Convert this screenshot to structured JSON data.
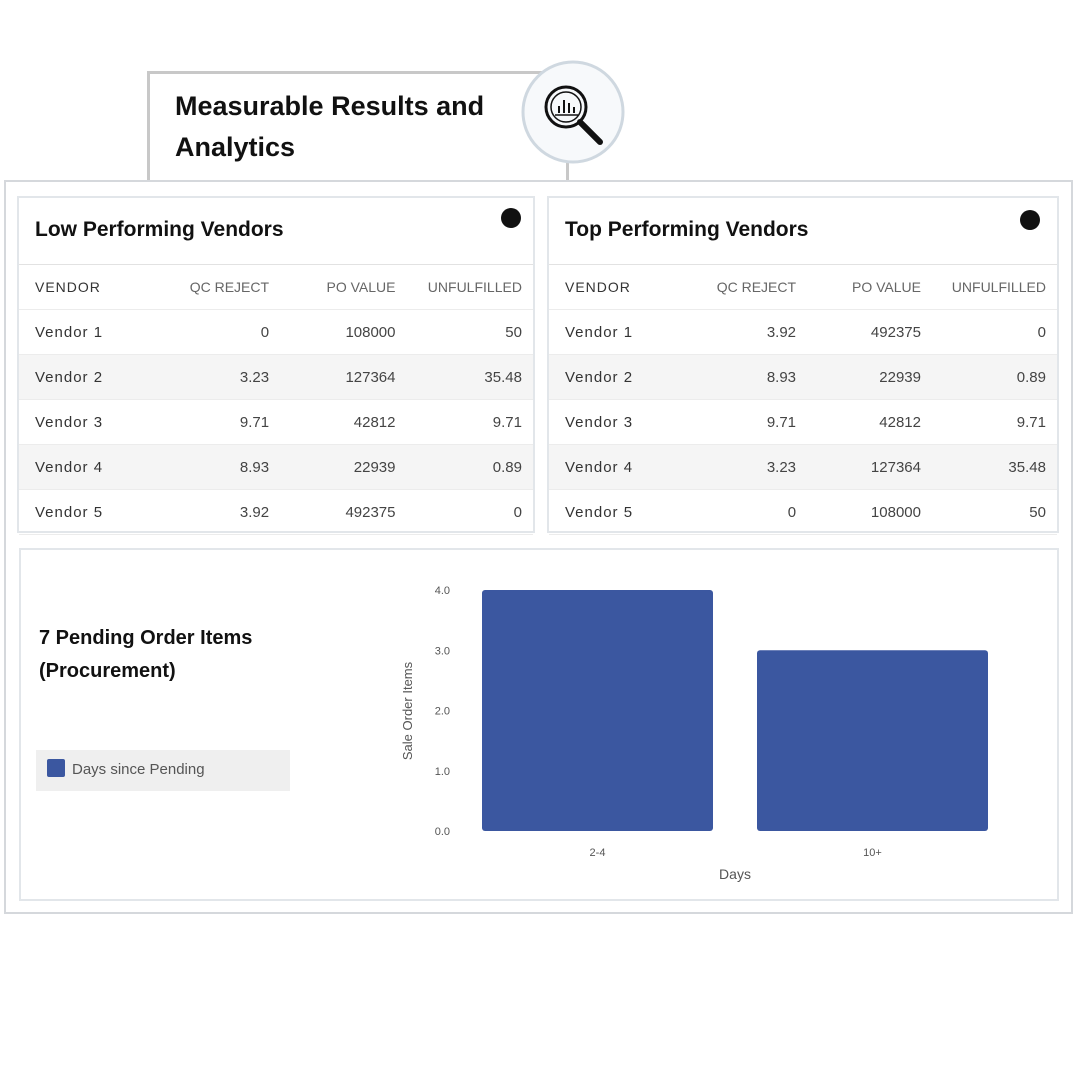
{
  "header": {
    "title": "Measurable Results and Analytics"
  },
  "low_vendors": {
    "title": "Low Performing Vendors",
    "columns": [
      "VENDOR",
      "QC REJECT",
      "PO VALUE",
      "UNFULFILLED"
    ],
    "rows": [
      [
        "Vendor 1",
        0,
        108000,
        50
      ],
      [
        "Vendor 2",
        3.23,
        127364,
        35.48
      ],
      [
        "Vendor 3",
        9.71,
        42812,
        9.71
      ],
      [
        "Vendor 4",
        8.93,
        22939,
        0.89
      ],
      [
        "Vendor 5",
        3.92,
        492375,
        0
      ]
    ]
  },
  "top_vendors": {
    "title": "Top Performing Vendors",
    "columns": [
      "VENDOR",
      "QC REJECT",
      "PO VALUE",
      "UNFULFILLED"
    ],
    "rows": [
      [
        "Vendor 1",
        3.92,
        492375,
        0
      ],
      [
        "Vendor 2",
        8.93,
        22939,
        0.89
      ],
      [
        "Vendor 3",
        9.71,
        42812,
        9.71
      ],
      [
        "Vendor 4",
        3.23,
        127364,
        35.48
      ],
      [
        "Vendor 5",
        0,
        108000,
        50
      ]
    ]
  },
  "chart_data": {
    "type": "bar",
    "title": "7 Pending Order Items (Procurement)",
    "categories": [
      "2-4",
      "10+"
    ],
    "series": [
      {
        "name": "Days since Pending",
        "color": "#3b57a0",
        "values": [
          4,
          3
        ]
      }
    ],
    "xlabel": "Days",
    "ylabel": "Sale Order Items",
    "ylim": [
      0,
      4
    ],
    "yticks": [
      {
        "value": 0,
        "label": "0.0"
      },
      {
        "value": 1,
        "label": "1.0"
      },
      {
        "value": 2,
        "label": "2.0"
      },
      {
        "value": 3,
        "label": "3.0"
      },
      {
        "value": 4,
        "label": "4.0"
      }
    ]
  }
}
